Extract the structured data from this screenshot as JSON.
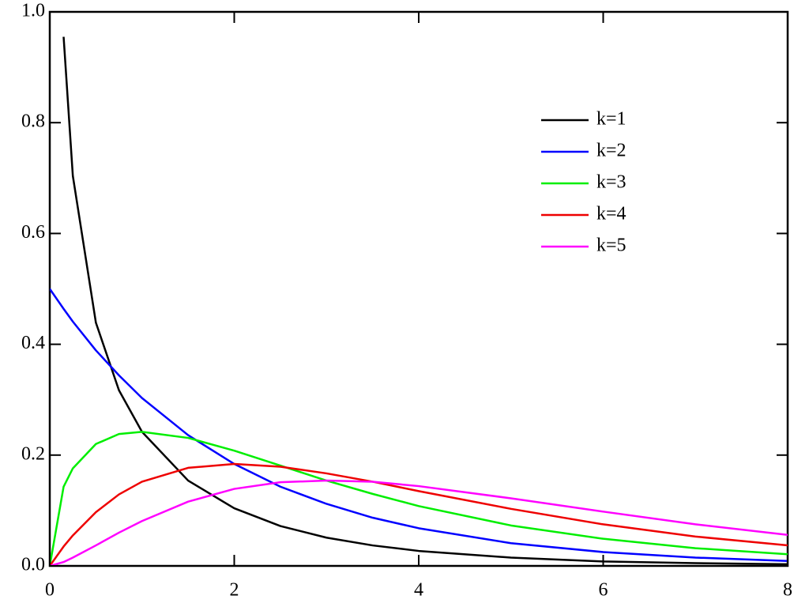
{
  "chart_data": {
    "type": "line",
    "x": [
      0,
      0.15,
      0.25,
      0.5,
      0.75,
      1,
      1.5,
      2,
      2.5,
      3,
      3.5,
      4,
      5,
      6,
      7,
      8
    ],
    "series": [
      {
        "name": "k=1",
        "color": "#000000",
        "values": [
          null,
          0.955,
          0.704,
          0.439,
          0.317,
          0.242,
          0.154,
          0.104,
          0.072,
          0.051,
          0.037,
          0.027,
          0.015,
          0.008,
          0.005,
          0.003
        ]
      },
      {
        "name": "k=2",
        "color": "#0000ff",
        "values": [
          0.5,
          0.464,
          0.441,
          0.389,
          0.344,
          0.303,
          0.236,
          0.184,
          0.143,
          0.112,
          0.087,
          0.068,
          0.041,
          0.025,
          0.015,
          0.009
        ]
      },
      {
        "name": "k=3",
        "color": "#00ee00",
        "values": [
          0,
          0.143,
          0.176,
          0.22,
          0.238,
          0.242,
          0.231,
          0.208,
          0.181,
          0.154,
          0.13,
          0.108,
          0.073,
          0.049,
          0.032,
          0.021
        ]
      },
      {
        "name": "k=4",
        "color": "#ee0000",
        "values": [
          0,
          0.035,
          0.055,
          0.097,
          0.129,
          0.152,
          0.177,
          0.184,
          0.179,
          0.167,
          0.152,
          0.135,
          0.103,
          0.075,
          0.053,
          0.037
        ]
      },
      {
        "name": "k=5",
        "color": "#ff00ff",
        "values": [
          0,
          0.007,
          0.015,
          0.037,
          0.06,
          0.081,
          0.116,
          0.139,
          0.151,
          0.154,
          0.152,
          0.144,
          0.122,
          0.098,
          0.075,
          0.056
        ]
      }
    ],
    "xlim": [
      0,
      8
    ],
    "xticks": [
      0,
      2,
      4,
      6,
      8
    ],
    "ylim": [
      0,
      1
    ],
    "yticks": [
      {
        "value": 0,
        "label": "0.0"
      },
      0.2,
      0.4,
      0.6,
      0.8,
      {
        "value": 1,
        "label": "1.0"
      }
    ],
    "legend": "upper right"
  }
}
